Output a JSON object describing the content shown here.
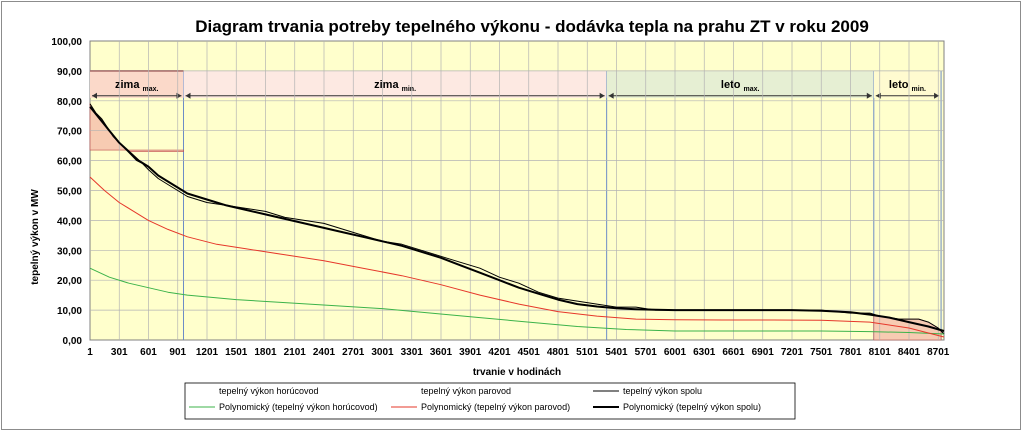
{
  "chart_data": {
    "type": "line",
    "title": "Diagram trvania potreby tepelného výkonu - dodávka tepla na prahu ZT  v roku 2009",
    "xlabel": "trvanie v hodinách",
    "ylabel": "tepelný výkon v MW",
    "xlim": [
      1,
      8760
    ],
    "ylim": [
      0,
      100
    ],
    "y_ticks": [
      "0,00",
      "10,00",
      "20,00",
      "30,00",
      "40,00",
      "50,00",
      "60,00",
      "70,00",
      "80,00",
      "90,00",
      "100,00"
    ],
    "x_ticks": [
      1,
      301,
      601,
      901,
      1201,
      1501,
      1801,
      2101,
      2401,
      2701,
      3001,
      3301,
      3601,
      3901,
      4201,
      4501,
      4801,
      5101,
      5401,
      5701,
      6001,
      6301,
      6601,
      6901,
      7201,
      7501,
      7801,
      8101,
      8401,
      8701
    ],
    "grid": true,
    "bands": [
      {
        "name": "zima",
        "sub": "max.",
        "start": 1,
        "end": 960,
        "color": "#fbd9c9"
      },
      {
        "name": "zima",
        "sub": "min.",
        "start": 960,
        "end": 5300,
        "color": "#fde9e2"
      },
      {
        "name": "leto",
        "sub": "max.",
        "start": 5300,
        "end": 8040,
        "color": "#e6efd3"
      },
      {
        "name": "leto",
        "sub": "min.",
        "start": 8040,
        "end": 8730,
        "color": "#fffbd0"
      }
    ],
    "series": [
      {
        "name": "tepelný výkon horúcovod",
        "color": "#000000",
        "width": 0,
        "x": [],
        "y": []
      },
      {
        "name": "tepelný výkon parovod",
        "color": "#000000",
        "width": 0,
        "x": [],
        "y": []
      },
      {
        "name": "tepelný výkon spolu",
        "color": "#000000",
        "width": 1,
        "x": [
          1,
          60,
          120,
          180,
          240,
          300,
          360,
          420,
          480,
          540,
          600,
          700,
          800,
          900,
          1000,
          1200,
          1400,
          1600,
          1800,
          2000,
          2200,
          2400,
          2600,
          2800,
          3000,
          3200,
          3400,
          3600,
          3800,
          4000,
          4200,
          4400,
          4600,
          4800,
          5000,
          5200,
          5400,
          5600,
          5800,
          6000,
          6300,
          6600,
          6900,
          7200,
          7500,
          7800,
          8000,
          8100,
          8300,
          8500,
          8600,
          8700,
          8760
        ],
        "y": [
          79,
          76,
          74,
          71,
          68,
          66,
          64,
          62,
          60,
          59,
          57,
          54,
          52,
          50,
          48,
          46,
          45,
          44,
          43,
          41,
          40,
          39,
          37,
          35,
          33,
          32,
          30,
          28,
          26,
          24,
          21,
          19,
          16,
          14,
          13,
          12,
          11,
          11,
          10,
          10,
          10,
          10,
          10,
          10,
          10,
          9,
          9,
          8,
          7,
          7,
          6,
          4,
          2
        ]
      },
      {
        "name": "Polynomický (tepelný výkon horúcovod)",
        "color": "#3cb34a",
        "width": 1,
        "x": [
          1,
          200,
          400,
          600,
          800,
          1000,
          1500,
          2000,
          2500,
          3000,
          3500,
          4000,
          4500,
          5000,
          5500,
          6000,
          6500,
          7000,
          7500,
          8000,
          8400,
          8760
        ],
        "y": [
          24,
          21,
          19,
          17.5,
          16,
          15,
          13.5,
          12.5,
          11.5,
          10.5,
          9,
          7.5,
          6,
          4.5,
          3.5,
          3,
          3,
          3,
          3,
          2.8,
          2.5,
          2
        ]
      },
      {
        "name": "Polynomický (tepelný výkon parovod)",
        "color": "#e6372a",
        "width": 1,
        "x": [
          1,
          150,
          300,
          450,
          600,
          800,
          1000,
          1300,
          1600,
          2000,
          2400,
          2800,
          3200,
          3600,
          4000,
          4400,
          4800,
          5200,
          5600,
          6000,
          6500,
          7000,
          7500,
          8000,
          8400,
          8760
        ],
        "y": [
          54.5,
          50,
          46,
          43,
          40,
          37,
          34.5,
          32,
          30.5,
          28.5,
          26.5,
          24,
          21.5,
          18.5,
          15,
          12,
          9.5,
          8,
          7,
          6.8,
          6.7,
          6.7,
          6.6,
          6,
          4,
          1
        ]
      },
      {
        "name": "Polynomický (tepelný výkon spolu)",
        "color": "#000000",
        "width": 2,
        "x": [
          1,
          100,
          200,
          300,
          400,
          500,
          600,
          700,
          800,
          900,
          1000,
          1200,
          1400,
          1600,
          1800,
          2000,
          2200,
          2400,
          2600,
          2800,
          3000,
          3200,
          3400,
          3600,
          3800,
          4000,
          4200,
          4400,
          4600,
          4800,
          5000,
          5200,
          5400,
          5600,
          5800,
          6000,
          6300,
          6600,
          6900,
          7200,
          7500,
          7800,
          8000,
          8200,
          8400,
          8600,
          8760
        ],
        "y": [
          78,
          74,
          70,
          66,
          63,
          60,
          58,
          55,
          53,
          51,
          49,
          47,
          45,
          43.5,
          42,
          40.5,
          39,
          37.5,
          36,
          34.5,
          33,
          31.5,
          29.5,
          27.5,
          25,
          22.5,
          20,
          17.5,
          15.5,
          13.5,
          12,
          11.2,
          10.6,
          10.3,
          10.1,
          10,
          10,
          10,
          10,
          10,
          9.8,
          9.3,
          8.5,
          7.5,
          6,
          4.5,
          3
        ]
      }
    ],
    "fills": [
      {
        "name": "zima max. area",
        "color": "#f4b9a9",
        "x": [
          1,
          60,
          120,
          180,
          240,
          300,
          360,
          400,
          960
        ],
        "y": [
          79,
          76,
          74,
          71,
          68,
          66,
          64,
          63,
          63
        ],
        "baseline": 63.5
      },
      {
        "name": "leto min. area",
        "color": "#f4b9a9",
        "x": [
          8040,
          8100,
          8300,
          8500,
          8600,
          8700,
          8730
        ],
        "y": [
          8.5,
          8,
          7,
          7,
          6,
          4,
          3
        ],
        "baseline": 0
      }
    ],
    "legend": {
      "placement": "bottom",
      "items": [
        {
          "label": "tepelný výkon horúcovod",
          "color": "#ffffff",
          "width": 0
        },
        {
          "label": "tepelný výkon parovod",
          "color": "#ffffff",
          "width": 0
        },
        {
          "label": "tepelný výkon spolu",
          "color": "#000000",
          "width": 1
        },
        {
          "label": "Polynomický (tepelný výkon horúcovod)",
          "color": "#3cb34a",
          "width": 1
        },
        {
          "label": "Polynomický (tepelný výkon parovod)",
          "color": "#e6372a",
          "width": 1
        },
        {
          "label": "Polynomický (tepelný výkon spolu)",
          "color": "#000000",
          "width": 2
        }
      ]
    }
  }
}
